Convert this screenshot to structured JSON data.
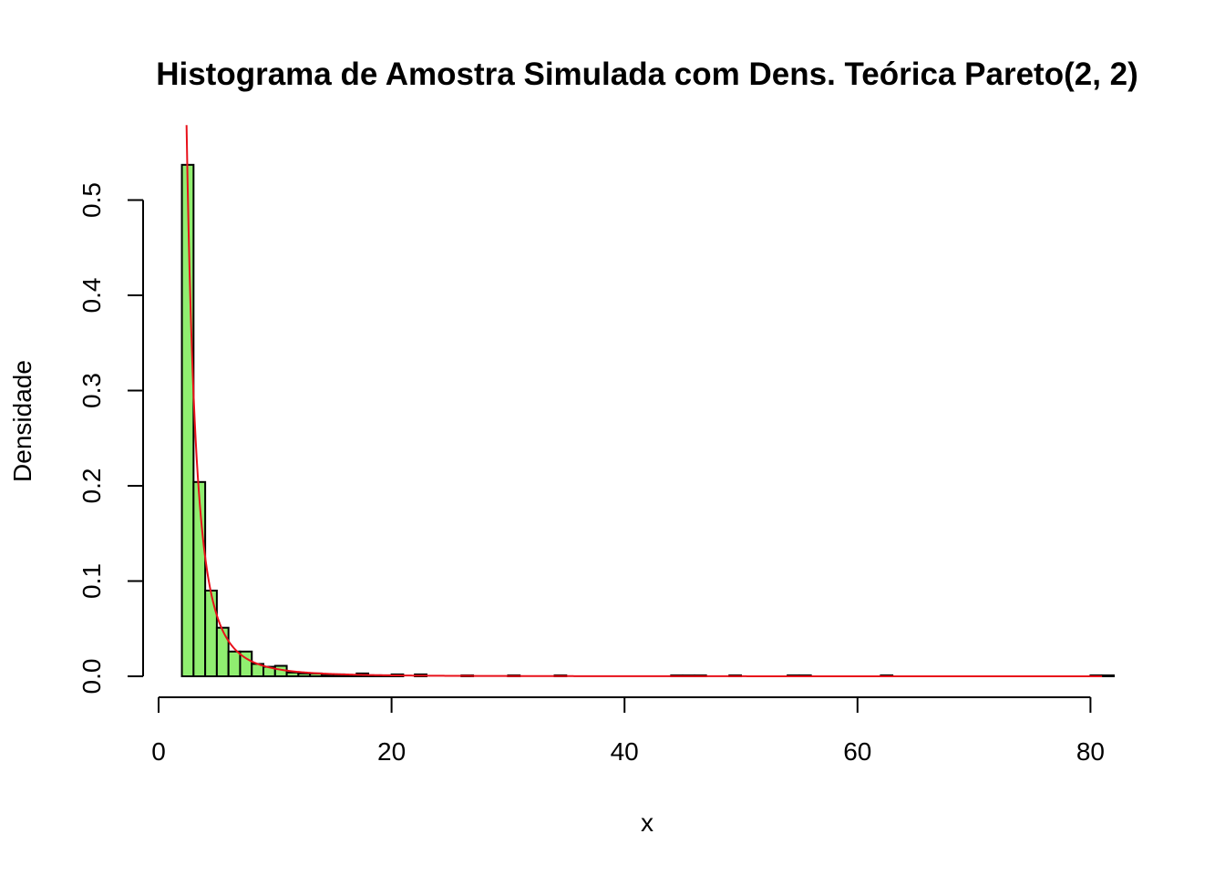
{
  "chart_data": {
    "type": "bar",
    "title": "Histograma de Amostra Simulada com Dens. Teórica Pareto(2, 2)",
    "xlabel": "x",
    "ylabel": "Densidade",
    "xlim": [
      0,
      82
    ],
    "ylim": [
      0,
      0.56
    ],
    "x_ticks": [
      0,
      20,
      40,
      60,
      80
    ],
    "y_ticks": [
      0.0,
      0.1,
      0.2,
      0.3,
      0.4,
      0.5
    ],
    "x_tick_labels": [
      "0",
      "20",
      "40",
      "60",
      "80"
    ],
    "y_tick_labels": [
      "0.0",
      "0.1",
      "0.2",
      "0.3",
      "0.4",
      "0.5"
    ],
    "bin_start": 2,
    "bin_width": 1,
    "densities": [
      0.537,
      0.204,
      0.09,
      0.051,
      0.026,
      0.026,
      0.013,
      0.01,
      0.011,
      0.004,
      0.003,
      0.003,
      0.002,
      0.002,
      0.001,
      0.003,
      0.001,
      0.001,
      0.002,
      0.0,
      0.002,
      0.0,
      0.0,
      0.0,
      0.001,
      0.0,
      0.0,
      0.0,
      0.001,
      0.0,
      0.0,
      0.0,
      0.001,
      0.0,
      0.0,
      0.0,
      0.0,
      0.0,
      0.0,
      0.0,
      0.0,
      0.0,
      0.001,
      0.001,
      0.001,
      0.0,
      0.0,
      0.001,
      0.0,
      0.0,
      0.0,
      0.0,
      0.001,
      0.001,
      0.0,
      0.0,
      0.0,
      0.0,
      0.0,
      0.0,
      0.001,
      0.0,
      0.0,
      0.0,
      0.0,
      0.0,
      0.0,
      0.0,
      0.0,
      0.0,
      0.0,
      0.0,
      0.0,
      0.0,
      0.0,
      0.0,
      0.0,
      0.0,
      0.001,
      0.001
    ],
    "theoretical_density": {
      "distribution": "Pareto",
      "shape": 2,
      "scale": 2,
      "x_range": [
        2.4,
        81.0
      ]
    },
    "colors": {
      "bar_fill": "#90EE70",
      "bar_stroke": "#000000",
      "curve": "#E8101A"
    },
    "grid": false
  }
}
